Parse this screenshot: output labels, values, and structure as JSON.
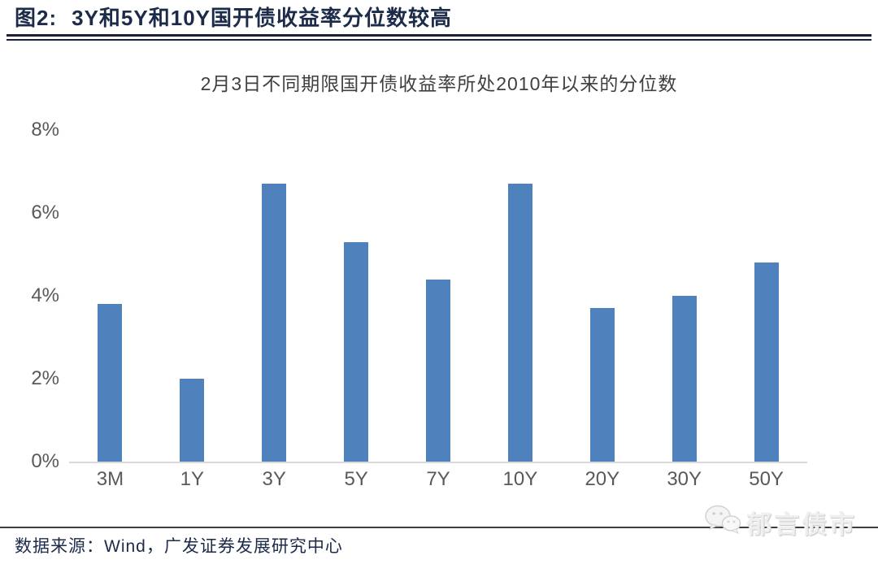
{
  "figure": {
    "label": "图2:",
    "title": "3Y和5Y和10Y国开债收益率分位数较高"
  },
  "chart_data": {
    "type": "bar",
    "title": "2月3日不同期限国开债收益率所处2010年以来的分位数",
    "categories": [
      "3M",
      "1Y",
      "3Y",
      "5Y",
      "7Y",
      "10Y",
      "20Y",
      "30Y",
      "50Y"
    ],
    "values": [
      3.8,
      2.0,
      6.7,
      5.3,
      4.4,
      6.7,
      3.7,
      4.0,
      4.8
    ],
    "unit": "%",
    "xlabel": "",
    "ylabel": "",
    "ylim": [
      0,
      8
    ],
    "ytick_values": [
      8,
      6,
      4,
      2,
      0
    ],
    "ytick_labels": [
      "8%",
      "6%",
      "4%",
      "2%",
      "0%"
    ],
    "grid": false,
    "legend_position": "none",
    "bar_color": "#4F81BD",
    "axis_line_color": "#D9D9D9"
  },
  "footer": {
    "source": "数据来源：Wind，广发证券发展研究中心",
    "watermark_text": "郁言债市",
    "watermark_icon": "wechat-icon"
  },
  "colors": {
    "title_navy": "#1C2B4A",
    "rule_dark": "#1B2137",
    "label_gray": "#595959",
    "chart_title_gray": "#3F3F3F"
  }
}
